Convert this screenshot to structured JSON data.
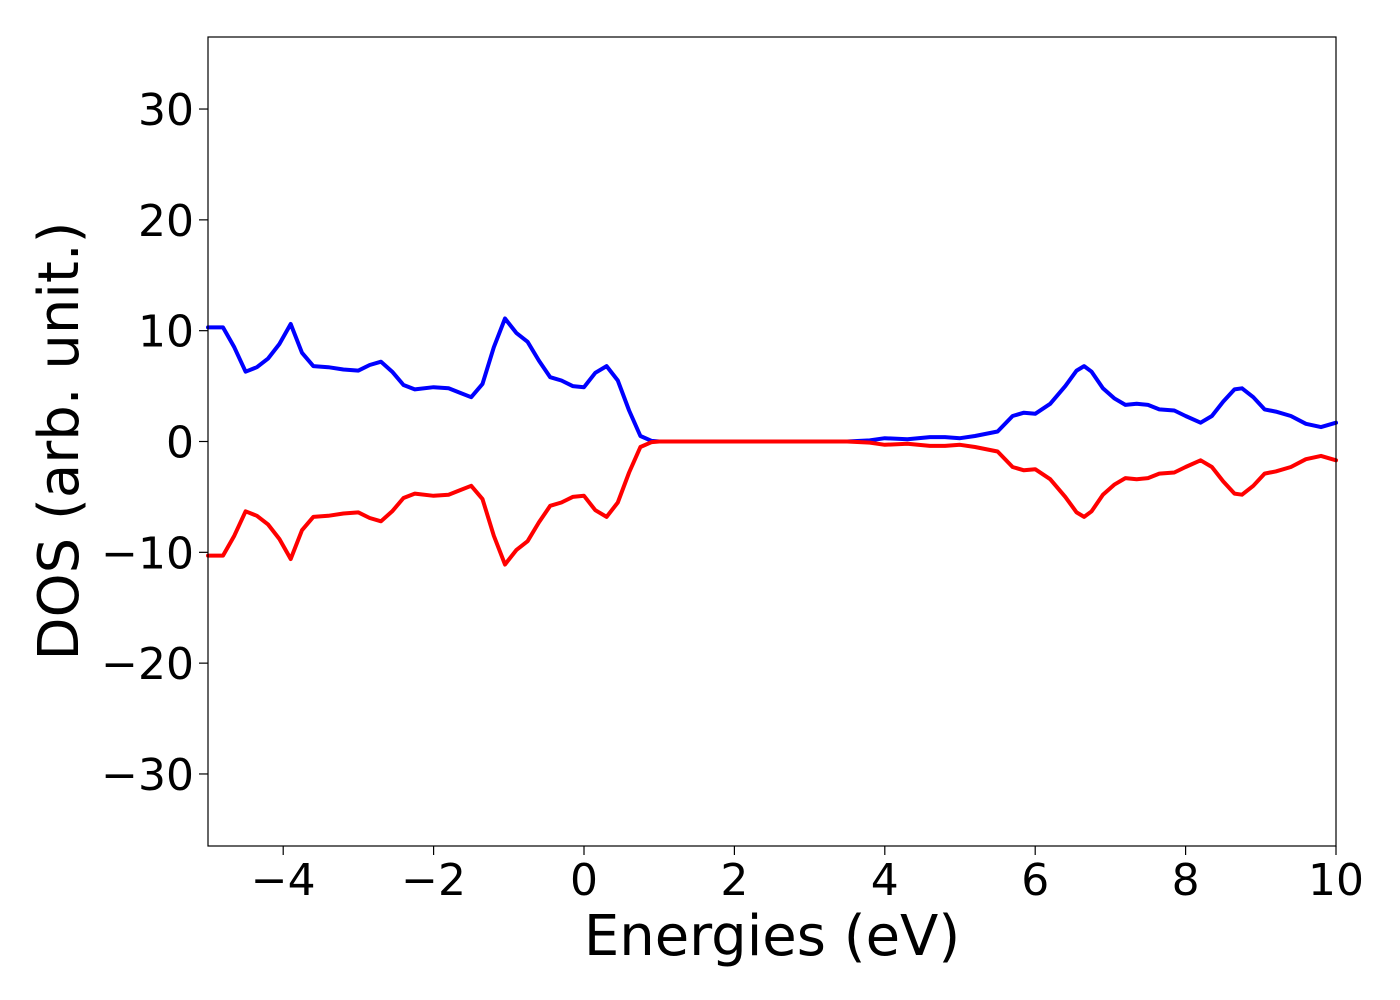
{
  "chart_data": {
    "type": "line",
    "xlabel": "Energies (eV)",
    "ylabel": "DOS (arb. unit.)",
    "xlim": [
      -5,
      10
    ],
    "ylim": [
      -36.5,
      36.5
    ],
    "xticks": [
      -4,
      -2,
      0,
      2,
      4,
      6,
      8,
      10
    ],
    "xtick_labels": [
      "−4",
      "−2",
      "0",
      "2",
      "4",
      "6",
      "8",
      "10"
    ],
    "yticks": [
      -30,
      -20,
      -10,
      0,
      10,
      20,
      30
    ],
    "ytick_labels": [
      "−30",
      "−20",
      "−10",
      "0",
      "10",
      "20",
      "30"
    ],
    "grid": false,
    "legend": "none",
    "series": [
      {
        "color": "#0000ff",
        "x": [
          -5.0,
          -4.8,
          -4.65,
          -4.5,
          -4.35,
          -4.2,
          -4.05,
          -3.9,
          -3.75,
          -3.6,
          -3.4,
          -3.2,
          -3.0,
          -2.85,
          -2.7,
          -2.55,
          -2.4,
          -2.25,
          -2.0,
          -1.8,
          -1.65,
          -1.5,
          -1.35,
          -1.2,
          -1.05,
          -0.9,
          -0.75,
          -0.6,
          -0.45,
          -0.3,
          -0.15,
          0.0,
          0.15,
          0.3,
          0.45,
          0.6,
          0.75,
          0.9,
          1.0,
          1.5,
          2.0,
          2.5,
          3.0,
          3.5,
          3.8,
          4.0,
          4.3,
          4.6,
          4.8,
          5.0,
          5.2,
          5.5,
          5.7,
          5.85,
          6.0,
          6.2,
          6.4,
          6.55,
          6.65,
          6.75,
          6.9,
          7.05,
          7.2,
          7.35,
          7.5,
          7.65,
          7.85,
          8.0,
          8.2,
          8.35,
          8.5,
          8.65,
          8.75,
          8.9,
          9.05,
          9.2,
          9.4,
          9.6,
          9.8,
          10.0
        ],
        "values": [
          10.3,
          10.3,
          8.5,
          6.3,
          6.7,
          7.5,
          8.8,
          10.6,
          8.0,
          6.8,
          6.7,
          6.5,
          6.4,
          6.9,
          7.2,
          6.3,
          5.1,
          4.7,
          4.9,
          4.8,
          4.4,
          4.0,
          5.2,
          8.5,
          11.1,
          9.8,
          9.0,
          7.3,
          5.8,
          5.5,
          5.0,
          4.9,
          6.2,
          6.8,
          5.5,
          2.8,
          0.5,
          0.05,
          0.0,
          0.0,
          0.0,
          0.0,
          0.0,
          0.0,
          0.1,
          0.3,
          0.2,
          0.4,
          0.4,
          0.3,
          0.5,
          0.9,
          2.3,
          2.6,
          2.5,
          3.4,
          5.0,
          6.4,
          6.8,
          6.3,
          4.8,
          3.9,
          3.3,
          3.4,
          3.3,
          2.9,
          2.8,
          2.3,
          1.7,
          2.3,
          3.6,
          4.7,
          4.8,
          4.0,
          2.9,
          2.7,
          2.3,
          1.6,
          1.3,
          1.7
        ]
      },
      {
        "color": "#ff0000",
        "x": [
          -5.0,
          -4.8,
          -4.65,
          -4.5,
          -4.35,
          -4.2,
          -4.05,
          -3.9,
          -3.75,
          -3.6,
          -3.4,
          -3.2,
          -3.0,
          -2.85,
          -2.7,
          -2.55,
          -2.4,
          -2.25,
          -2.0,
          -1.8,
          -1.65,
          -1.5,
          -1.35,
          -1.2,
          -1.05,
          -0.9,
          -0.75,
          -0.6,
          -0.45,
          -0.3,
          -0.15,
          0.0,
          0.15,
          0.3,
          0.45,
          0.6,
          0.75,
          0.9,
          1.0,
          1.5,
          2.0,
          2.5,
          3.0,
          3.5,
          3.8,
          4.0,
          4.3,
          4.6,
          4.8,
          5.0,
          5.2,
          5.5,
          5.7,
          5.85,
          6.0,
          6.2,
          6.4,
          6.55,
          6.65,
          6.75,
          6.9,
          7.05,
          7.2,
          7.35,
          7.5,
          7.65,
          7.85,
          8.0,
          8.2,
          8.35,
          8.5,
          8.65,
          8.75,
          8.9,
          9.05,
          9.2,
          9.4,
          9.6,
          9.8,
          10.0
        ],
        "values": [
          -10.3,
          -10.3,
          -8.5,
          -6.3,
          -6.7,
          -7.5,
          -8.8,
          -10.6,
          -8.0,
          -6.8,
          -6.7,
          -6.5,
          -6.4,
          -6.9,
          -7.2,
          -6.3,
          -5.1,
          -4.7,
          -4.9,
          -4.8,
          -4.4,
          -4.0,
          -5.2,
          -8.5,
          -11.1,
          -9.8,
          -9.0,
          -7.3,
          -5.8,
          -5.5,
          -5.0,
          -4.9,
          -6.2,
          -6.8,
          -5.5,
          -2.8,
          -0.5,
          -0.05,
          0.0,
          0.0,
          0.0,
          0.0,
          0.0,
          0.0,
          -0.1,
          -0.3,
          -0.2,
          -0.4,
          -0.4,
          -0.3,
          -0.5,
          -0.9,
          -2.3,
          -2.6,
          -2.5,
          -3.4,
          -5.0,
          -6.4,
          -6.8,
          -6.3,
          -4.8,
          -3.9,
          -3.3,
          -3.4,
          -3.3,
          -2.9,
          -2.8,
          -2.3,
          -1.7,
          -2.3,
          -3.6,
          -4.7,
          -4.8,
          -4.0,
          -2.9,
          -2.7,
          -2.3,
          -1.6,
          -1.3,
          -1.7
        ]
      }
    ]
  }
}
